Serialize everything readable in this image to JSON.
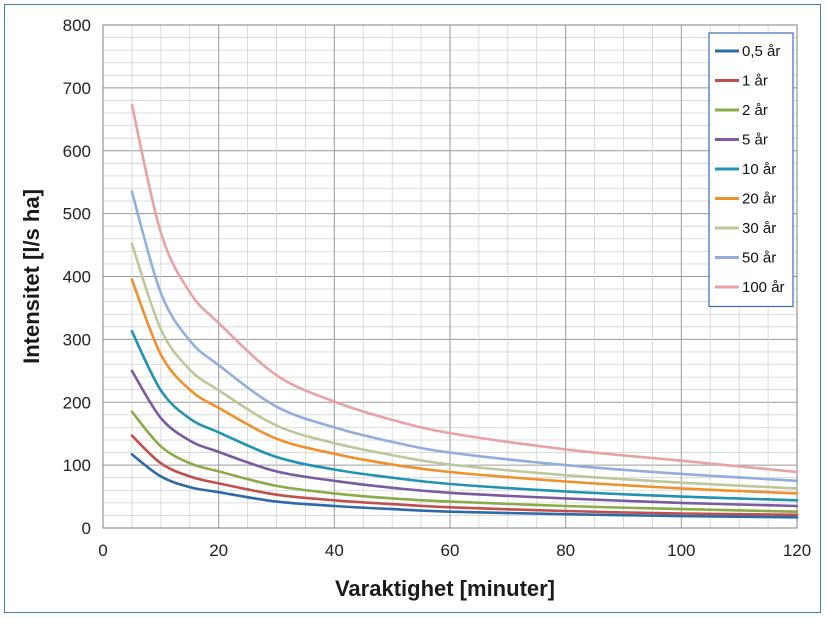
{
  "chart_data": {
    "type": "line",
    "xlabel": "Varaktighet [minuter]",
    "ylabel": "Intensitet [l/s ha]",
    "xlim": [
      0,
      120
    ],
    "ylim": [
      0,
      800
    ],
    "xticks": [
      0,
      20,
      40,
      60,
      80,
      100,
      120
    ],
    "yticks": [
      0,
      100,
      200,
      300,
      400,
      500,
      600,
      700,
      800
    ],
    "grid": true,
    "legend_position": "top-right",
    "x": [
      5,
      10,
      15,
      20,
      30,
      40,
      50,
      60,
      80,
      100,
      120
    ],
    "series": [
      {
        "name": "0,5 år",
        "color": "#2e6aa8",
        "values": [
          117,
          82,
          65,
          57,
          42,
          35,
          30,
          26,
          22,
          19,
          17
        ]
      },
      {
        "name": "1 år",
        "color": "#c0504d",
        "values": [
          147,
          103,
          82,
          71,
          53,
          44,
          38,
          33,
          27,
          23,
          21
        ]
      },
      {
        "name": "2 år",
        "color": "#8aab4a",
        "values": [
          185,
          130,
          103,
          90,
          67,
          55,
          47,
          42,
          35,
          30,
          26
        ]
      },
      {
        "name": "5 år",
        "color": "#7a5aa0",
        "values": [
          250,
          175,
          139,
          121,
          90,
          75,
          64,
          56,
          47,
          40,
          35
        ]
      },
      {
        "name": "10 år",
        "color": "#1f94b0",
        "values": [
          313,
          219,
          174,
          152,
          113,
          93,
          80,
          70,
          58,
          50,
          44
        ]
      },
      {
        "name": "20 år",
        "color": "#f0902a",
        "values": [
          395,
          276,
          220,
          191,
          142,
          118,
          101,
          89,
          74,
          63,
          55
        ]
      },
      {
        "name": "30 år",
        "color": "#bcc89a",
        "values": [
          452,
          316,
          252,
          219,
          163,
          135,
          116,
          101,
          84,
          72,
          63
        ]
      },
      {
        "name": "50 år",
        "color": "#92aedd",
        "values": [
          535,
          374,
          298,
          259,
          193,
          160,
          137,
          120,
          100,
          86,
          75
        ]
      },
      {
        "name": "100 år",
        "color": "#e8a2a4",
        "values": [
          673,
          470,
          375,
          326,
          243,
          201,
          172,
          151,
          125,
          107,
          89
        ]
      }
    ]
  }
}
